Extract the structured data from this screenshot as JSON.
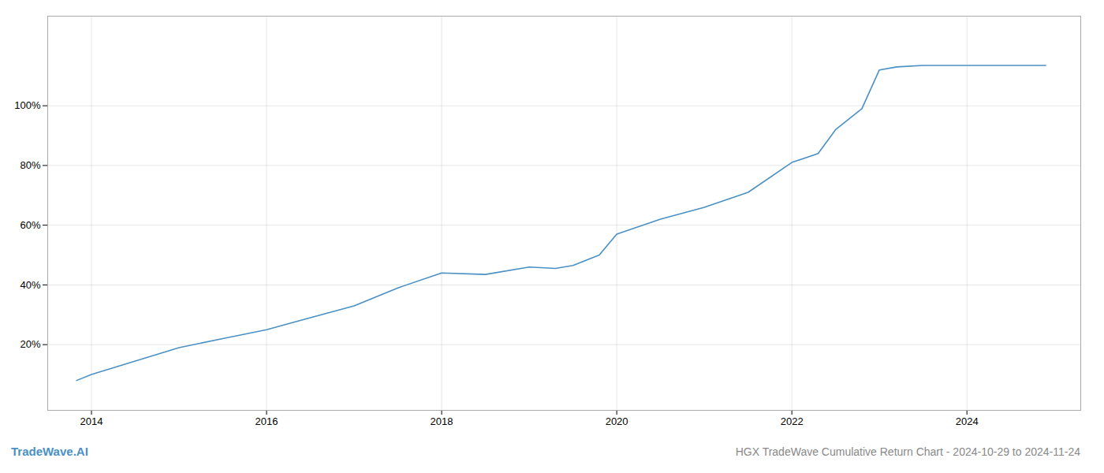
{
  "chart_data": {
    "type": "line",
    "title": "HGX TradeWave Cumulative Return Chart - 2024-10-29 to 2024-11-24",
    "annotations": [
      "TradeWave.AI"
    ],
    "color": "#4a90c4",
    "x": [
      2013.83,
      2014.0,
      2014.5,
      2015.0,
      2015.5,
      2016.0,
      2016.5,
      2017.0,
      2017.5,
      2018.0,
      2018.5,
      2019.0,
      2019.3,
      2019.5,
      2019.8,
      2020.0,
      2020.5,
      2021.0,
      2021.5,
      2022.0,
      2022.3,
      2022.5,
      2022.8,
      2023.0,
      2023.2,
      2023.5,
      2024.0,
      2024.9
    ],
    "values": [
      0.08,
      0.1,
      0.145,
      0.19,
      0.22,
      0.25,
      0.29,
      0.33,
      0.39,
      0.44,
      0.435,
      0.46,
      0.455,
      0.465,
      0.5,
      0.57,
      0.62,
      0.66,
      0.71,
      0.81,
      0.84,
      0.92,
      0.99,
      1.12,
      1.13,
      1.135,
      1.135,
      1.135
    ],
    "xlim": [
      2013.5,
      2025.3
    ],
    "ylim": [
      -0.02,
      1.3
    ],
    "xticks": [
      2014,
      2016,
      2018,
      2020,
      2022,
      2024
    ],
    "yticks": [
      {
        "value": 0.2,
        "label": "20%"
      },
      {
        "value": 0.4,
        "label": "40%"
      },
      {
        "value": 0.6,
        "label": "60%"
      },
      {
        "value": 0.8,
        "label": "80%"
      },
      {
        "value": 1.0,
        "label": "100%"
      }
    ],
    "grid": true
  }
}
